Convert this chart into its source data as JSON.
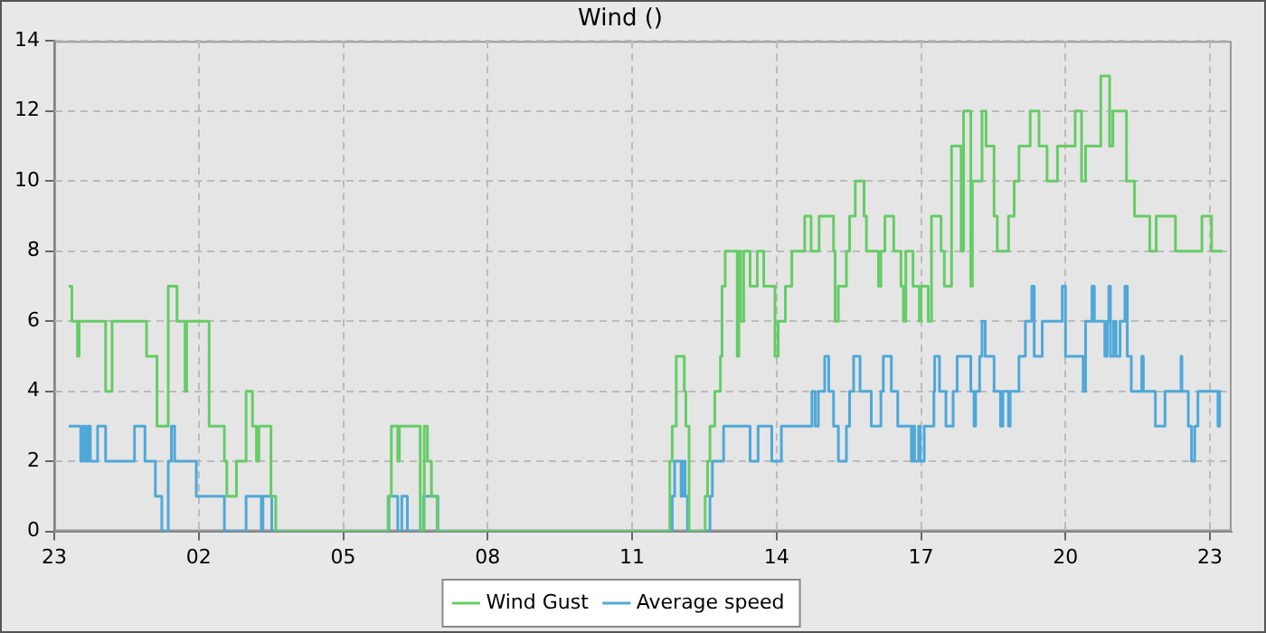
{
  "chart_data": {
    "type": "step",
    "title": "Wind ()",
    "xlim": [
      "--01-01T23:00",
      "--01-02T23:27"
    ],
    "xticks": [
      {
        "value": "--01-01T23:00",
        "label": "23"
      },
      {
        "value": "--01-02T02:00",
        "label": "02"
      },
      {
        "value": "--01-02T05:00",
        "label": "05"
      },
      {
        "value": "--01-02T08:00",
        "label": "08"
      },
      {
        "value": "--01-02T11:00",
        "label": "11"
      },
      {
        "value": "--01-02T14:00",
        "label": "14"
      },
      {
        "value": "--01-02T17:00",
        "label": "17"
      },
      {
        "value": "--01-02T20:00",
        "label": "20"
      },
      {
        "value": "--01-02T23:00",
        "label": "23"
      }
    ],
    "ylim": [
      0,
      14
    ],
    "yticks": [
      0,
      2,
      4,
      6,
      8,
      10,
      12,
      14
    ],
    "grid": true,
    "legend": "bottom",
    "series": [
      {
        "name": "Wind Gust",
        "color": "#66cc66",
        "x": [
          "--01-01T23:18",
          "--01-01T23:22",
          "--01-01T23:29",
          "--01-01T23:31",
          "--01-02T00:04",
          "--01-02T00:12",
          "--01-02T00:55",
          "--01-02T01:08",
          "--01-02T01:22",
          "--01-02T01:33",
          "--01-02T01:43",
          "--01-02T01:45",
          "--01-02T02:13",
          "--01-02T02:32",
          "--01-02T02:35",
          "--01-02T02:47",
          "--01-02T02:59",
          "--01-02T03:07",
          "--01-02T03:12",
          "--01-02T03:15",
          "--01-02T03:30",
          "--01-02T03:36",
          "--01-02T05:56",
          "--01-02T06:00",
          "--01-02T06:08",
          "--01-02T06:10",
          "--01-02T06:36",
          "--01-02T06:41",
          "--01-02T06:45",
          "--01-02T06:50",
          "--01-02T06:57",
          "--01-02T11:47",
          "--01-02T11:50",
          "--01-02T11:55",
          "--01-02T12:05",
          "--01-02T12:07",
          "--01-02T12:11",
          "--01-02T12:31",
          "--01-02T12:34",
          "--01-02T12:37",
          "--01-02T12:43",
          "--01-02T12:50",
          "--01-02T12:52",
          "--01-02T12:56",
          "--01-02T13:11",
          "--01-02T13:13",
          "--01-02T13:15",
          "--01-02T13:19",
          "--01-02T13:27",
          "--01-02T13:36",
          "--01-02T13:44",
          "--01-02T13:58",
          "--01-02T14:02",
          "--01-02T14:11",
          "--01-02T14:19",
          "--01-02T14:35",
          "--01-02T14:43",
          "--01-02T14:53",
          "--01-02T15:11",
          "--01-02T15:13",
          "--01-02T15:17",
          "--01-02T15:27",
          "--01-02T15:31",
          "--01-02T15:38",
          "--01-02T15:49",
          "--01-02T15:52",
          "--01-02T16:07",
          "--01-02T16:10",
          "--01-02T16:15",
          "--01-02T16:26",
          "--01-02T16:35",
          "--01-02T16:38",
          "--01-02T16:41",
          "--01-02T16:50",
          "--01-02T16:58",
          "--01-02T17:00",
          "--01-02T17:09",
          "--01-02T17:13",
          "--01-02T17:25",
          "--01-02T17:29",
          "--01-02T17:38",
          "--01-02T17:50",
          "--01-02T17:53",
          "--01-02T18:02",
          "--01-02T18:04",
          "--01-02T18:16",
          "--01-02T18:21",
          "--01-02T18:31",
          "--01-02T18:35",
          "--01-02T18:49",
          "--01-02T18:56",
          "--01-02T19:02",
          "--01-02T19:16",
          "--01-02T19:27",
          "--01-02T19:37",
          "--01-02T19:50",
          "--01-02T20:12",
          "--01-02T20:20",
          "--01-02T20:25",
          "--01-02T20:44",
          "--01-02T20:55",
          "--01-02T20:59",
          "--01-02T21:16",
          "--01-02T21:26",
          "--01-02T21:45",
          "--01-02T21:53",
          "--01-02T22:17",
          "--01-02T22:50",
          "--01-02T23:02",
          "--01-02T23:16"
        ],
        "values": [
          7,
          6,
          5,
          6,
          4,
          6,
          5,
          3,
          7,
          6,
          4,
          6,
          3,
          2,
          1,
          2,
          4,
          3,
          2,
          3,
          1,
          0,
          1,
          3,
          2,
          3,
          0,
          3,
          2,
          1,
          0,
          2,
          3,
          5,
          4,
          3,
          0,
          1,
          2,
          3,
          4,
          5,
          7,
          8,
          5,
          8,
          6,
          8,
          7,
          8,
          7,
          5,
          6,
          7,
          8,
          9,
          8,
          9,
          8,
          6,
          7,
          8,
          9,
          10,
          9,
          8,
          7,
          8,
          9,
          8,
          7,
          6,
          8,
          7,
          6,
          7,
          6,
          9,
          8,
          7,
          11,
          8,
          12,
          7,
          10,
          12,
          11,
          9,
          8,
          9,
          10,
          11,
          12,
          11,
          10,
          11,
          12,
          10,
          11,
          13,
          11,
          12,
          10,
          9,
          8,
          9,
          8,
          9,
          8,
          8
        ]
      },
      {
        "name": "Average speed",
        "color": "#4fa8d8",
        "x": [
          "--01-01T23:18",
          "--01-01T23:33",
          "--01-01T23:36",
          "--01-01T23:39",
          "--01-01T23:42",
          "--01-01T23:45",
          "--01-01T23:54",
          "--01-02T00:04",
          "--01-02T00:40",
          "--01-02T00:53",
          "--01-02T01:06",
          "--01-02T01:14",
          "--01-02T01:22",
          "--01-02T01:26",
          "--01-02T01:30",
          "--01-02T01:57",
          "--01-02T02:32",
          "--01-02T02:59",
          "--01-02T03:18",
          "--01-02T03:20",
          "--01-02T03:31",
          "--01-02T05:57",
          "--01-02T06:08",
          "--01-02T06:13",
          "--01-02T06:20",
          "--01-02T06:40",
          "--01-02T06:58",
          "--01-02T11:50",
          "--01-02T11:53",
          "--01-02T12:01",
          "--01-02T12:03",
          "--01-02T12:06",
          "--01-02T12:09",
          "--01-02T12:37",
          "--01-02T12:40",
          "--01-02T12:54",
          "--01-02T13:27",
          "--01-02T13:37",
          "--01-02T13:54",
          "--01-02T14:06",
          "--01-02T14:44",
          "--01-02T14:48",
          "--01-02T14:52",
          "--01-02T15:00",
          "--01-02T15:05",
          "--01-02T15:11",
          "--01-02T15:17",
          "--01-02T15:27",
          "--01-02T15:31",
          "--01-02T15:36",
          "--01-02T15:44",
          "--01-02T15:58",
          "--01-02T16:10",
          "--01-02T16:13",
          "--01-02T16:23",
          "--01-02T16:31",
          "--01-02T16:48",
          "--01-02T16:50",
          "--01-02T16:52",
          "--01-02T16:57",
          "--01-02T16:59",
          "--01-02T17:04",
          "--01-02T17:16",
          "--01-02T17:17",
          "--01-02T17:23",
          "--01-02T17:31",
          "--01-02T17:40",
          "--01-02T17:45",
          "--01-02T18:02",
          "--01-02T18:06",
          "--01-02T18:08",
          "--01-02T18:13",
          "--01-02T18:16",
          "--01-02T18:20",
          "--01-02T18:31",
          "--01-02T18:39",
          "--01-02T18:42",
          "--01-02T18:49",
          "--01-02T18:51",
          "--01-02T19:02",
          "--01-02T19:10",
          "--01-02T19:18",
          "--01-02T19:21",
          "--01-02T19:31",
          "--01-02T19:56",
          "--01-02T20:00",
          "--01-02T20:22",
          "--01-02T20:25",
          "--01-02T20:33",
          "--01-02T20:36",
          "--01-02T20:49",
          "--01-02T20:52",
          "--01-02T20:54",
          "--01-02T20:56",
          "--01-02T21:00",
          "--01-02T21:03",
          "--01-02T21:08",
          "--01-02T21:14",
          "--01-02T21:17",
          "--01-02T21:22",
          "--01-02T21:35",
          "--01-02T21:37",
          "--01-02T21:52",
          "--01-02T22:04",
          "--01-02T22:24",
          "--01-02T22:25",
          "--01-02T22:33",
          "--01-02T22:37",
          "--01-02T22:41",
          "--01-02T22:45",
          "--01-02T23:10",
          "--01-02T23:12",
          "--01-02T23:14"
        ],
        "values": [
          3,
          2,
          3,
          2,
          3,
          2,
          3,
          2,
          3,
          2,
          1,
          0,
          2,
          3,
          2,
          1,
          0,
          1,
          0,
          1,
          0,
          1,
          0,
          1,
          0,
          1,
          0,
          1,
          2,
          1,
          2,
          1,
          0,
          1,
          2,
          3,
          2,
          3,
          2,
          3,
          4,
          3,
          4,
          5,
          4,
          3,
          2,
          3,
          4,
          5,
          4,
          3,
          4,
          5,
          4,
          3,
          2,
          3,
          2,
          3,
          2,
          3,
          4,
          5,
          4,
          3,
          4,
          5,
          4,
          3,
          4,
          5,
          6,
          5,
          4,
          3,
          4,
          3,
          4,
          5,
          6,
          7,
          5,
          6,
          7,
          5,
          4,
          6,
          7,
          6,
          5,
          6,
          7,
          5,
          6,
          5,
          6,
          7,
          5,
          4,
          5,
          4,
          3,
          4,
          5,
          4,
          3,
          2,
          3,
          4,
          3,
          4,
          4
        ]
      }
    ]
  }
}
